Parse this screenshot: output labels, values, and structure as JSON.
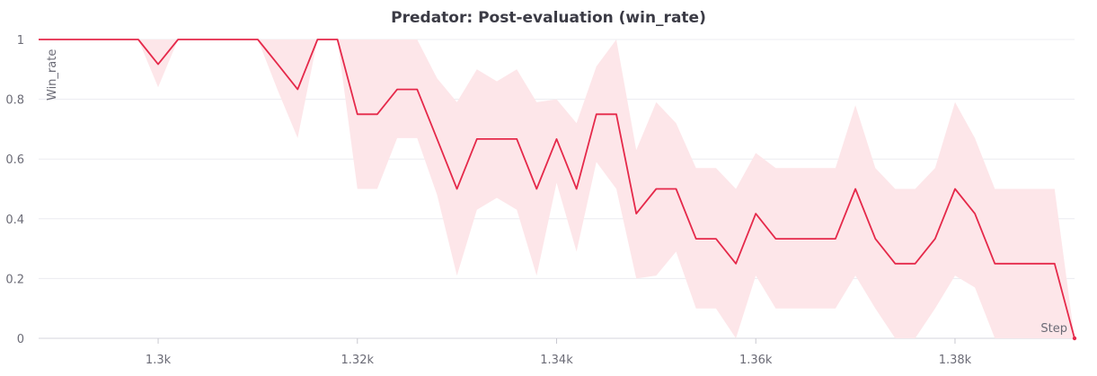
{
  "chart_data": {
    "type": "line",
    "title": "Predator: Post-evaluation (win_rate)",
    "xlabel": "Step",
    "ylabel": "Win_rate",
    "xlim": [
      1288,
      1392
    ],
    "ylim": [
      0,
      1
    ],
    "x_ticks": [
      1300,
      1320,
      1340,
      1360,
      1380
    ],
    "x_tick_labels": [
      "1.3k",
      "1.32k",
      "1.34k",
      "1.36k",
      "1.38k"
    ],
    "y_ticks": [
      0,
      0.2,
      0.4,
      0.6,
      0.8,
      1
    ],
    "y_tick_labels": [
      "0",
      "0.2",
      "0.4",
      "0.6",
      "0.8",
      "1"
    ],
    "grid": true,
    "line_color": "#e5294a",
    "band_color": "#fde6e9",
    "series": [
      {
        "x": [
          1288,
          1290,
          1292,
          1294,
          1296,
          1298,
          1300,
          1302,
          1304,
          1306,
          1308,
          1310,
          1312,
          1314,
          1316,
          1318,
          1320,
          1322,
          1324,
          1326,
          1328,
          1330,
          1332,
          1334,
          1336,
          1338,
          1340,
          1342,
          1344,
          1346,
          1348,
          1350,
          1352,
          1354,
          1356,
          1358,
          1360,
          1362,
          1364,
          1366,
          1368,
          1370,
          1372,
          1374,
          1376,
          1378,
          1380,
          1382,
          1384,
          1386,
          1388,
          1390,
          1392
        ],
        "y": [
          1,
          1,
          1,
          1,
          1,
          1,
          0.917,
          1,
          1,
          1,
          1,
          1,
          0.917,
          0.833,
          1,
          1,
          0.75,
          0.75,
          0.833,
          0.833,
          0.667,
          0.5,
          0.667,
          0.667,
          0.667,
          0.5,
          0.667,
          0.5,
          0.75,
          0.75,
          0.417,
          0.5,
          0.5,
          0.333,
          0.333,
          0.25,
          0.417,
          0.333,
          0.333,
          0.333,
          0.333,
          0.5,
          0.333,
          0.25,
          0.25,
          0.333,
          0.5,
          0.417,
          0.25,
          0.25,
          0.25,
          0.25,
          0
        ],
        "y_upper": [
          1,
          1,
          1,
          1,
          1,
          1,
          1,
          1,
          1,
          1,
          1,
          1,
          1,
          1,
          1,
          1,
          1,
          1,
          1,
          1,
          0.87,
          0.79,
          0.9,
          0.86,
          0.9,
          0.79,
          0.8,
          0.72,
          0.91,
          1,
          0.63,
          0.79,
          0.72,
          0.57,
          0.57,
          0.5,
          0.62,
          0.57,
          0.57,
          0.57,
          0.57,
          0.78,
          0.57,
          0.5,
          0.5,
          0.57,
          0.79,
          0.67,
          0.5,
          0.5,
          0.5,
          0.5,
          0
        ],
        "y_lower": [
          1,
          1,
          1,
          1,
          1,
          1,
          0.84,
          1,
          1,
          1,
          1,
          1,
          0.83,
          0.67,
          1,
          1,
          0.5,
          0.5,
          0.67,
          0.67,
          0.48,
          0.21,
          0.43,
          0.47,
          0.43,
          0.21,
          0.52,
          0.29,
          0.59,
          0.5,
          0.2,
          0.21,
          0.29,
          0.1,
          0.1,
          0,
          0.21,
          0.1,
          0.1,
          0.1,
          0.1,
          0.21,
          0.1,
          0,
          0,
          0.1,
          0.21,
          0.17,
          0,
          0,
          0,
          0,
          0
        ]
      }
    ]
  }
}
